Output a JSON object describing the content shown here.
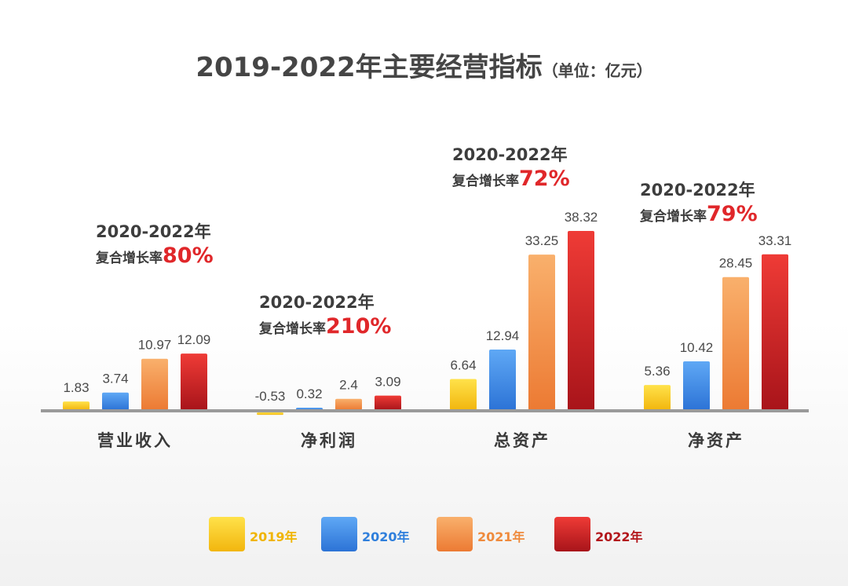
{
  "title": {
    "main": "2019-2022年主要经营指标",
    "unit": "（单位：亿元）"
  },
  "colors": {
    "y2019": "#f5c41b",
    "y2020": "#3d8ce6",
    "y2021": "#f2914a",
    "y2022": "#c9191c",
    "accent": "#e0272a"
  },
  "chart_data": {
    "type": "bar",
    "title": "2019-2022年主要经营指标（单位：亿元）",
    "categories": [
      "营业收入",
      "净利润",
      "总资产",
      "净资产"
    ],
    "series": [
      {
        "name": "2019年",
        "values": [
          1.83,
          -0.53,
          6.64,
          5.36
        ]
      },
      {
        "name": "2020年",
        "values": [
          3.74,
          0.32,
          12.94,
          10.42
        ]
      },
      {
        "name": "2021年",
        "values": [
          10.97,
          2.4,
          33.25,
          28.45
        ]
      },
      {
        "name": "2022年",
        "values": [
          12.09,
          3.09,
          38.32,
          33.31
        ]
      }
    ],
    "value_labels": [
      [
        "1.83",
        "3.74",
        "10.97",
        "12.09"
      ],
      [
        "-0.53",
        "0.32",
        "2.4",
        "3.09"
      ],
      [
        "6.64",
        "12.94",
        "33.25",
        "38.32"
      ],
      [
        "5.36",
        "10.42",
        "28.45",
        "33.31"
      ]
    ],
    "ylim": [
      -1,
      40
    ],
    "annotations": [
      {
        "period": "2020-2022年",
        "label": "复合增长率",
        "rate": "80%"
      },
      {
        "period": "2020-2022年",
        "label": "复合增长率",
        "rate": "210%"
      },
      {
        "period": "2020-2022年",
        "label": "复合增长率",
        "rate": "72%"
      },
      {
        "period": "2020-2022年",
        "label": "复合增长率",
        "rate": "79%"
      }
    ],
    "legend": [
      "2019年",
      "2020年",
      "2021年",
      "2022年"
    ]
  }
}
